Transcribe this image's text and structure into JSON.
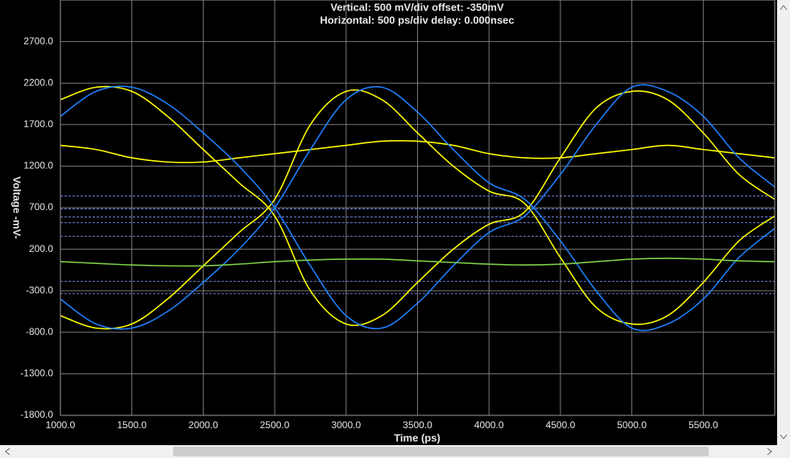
{
  "chart_data": {
    "type": "line",
    "title": "Vertical: 500 mV/div  offset: -350mV",
    "subtitle": "Horizontal: 500 ps/div  delay: 0.000nsec",
    "x_label": "Time  (ps)",
    "y_label": "Voltage  -mV-",
    "xlim": [
      1000,
      6000
    ],
    "ylim": [
      -1800,
      3200
    ],
    "xticks": [
      {
        "value": 1000,
        "label": "1000.0"
      },
      {
        "value": 1500,
        "label": "1500.0"
      },
      {
        "value": 2000,
        "label": "2000.0"
      },
      {
        "value": 2500,
        "label": "2500.0"
      },
      {
        "value": 3000,
        "label": "3000.0"
      },
      {
        "value": 3500,
        "label": "3500.0"
      },
      {
        "value": 4000,
        "label": "4000.0"
      },
      {
        "value": 4500,
        "label": "4500.0"
      },
      {
        "value": 5000,
        "label": "5000.0"
      },
      {
        "value": 5500,
        "label": "5500.0"
      }
    ],
    "yticks": [
      {
        "value": 2700,
        "label": "2700.0"
      },
      {
        "value": 2200,
        "label": "2200.0"
      },
      {
        "value": 1700,
        "label": "1700.0"
      },
      {
        "value": 1200,
        "label": "1200.0"
      },
      {
        "value": 700,
        "label": "700.0"
      },
      {
        "value": 200,
        "label": "200.0"
      },
      {
        "value": -300,
        "label": "-300.0"
      },
      {
        "value": -800,
        "label": "-800.0"
      },
      {
        "value": -1300,
        "label": "-1300.0"
      },
      {
        "value": -1800,
        "label": "-1800.0"
      }
    ],
    "grid": true,
    "reference_lines": [
      840,
      685,
      588,
      520,
      355,
      -188,
      -334
    ],
    "reference_color": "#6f7fd8",
    "x": [
      1000,
      1250,
      1500,
      1750,
      2000,
      2250,
      2500,
      2750,
      3000,
      3250,
      3500,
      3750,
      4000,
      4250,
      4500,
      4750,
      5000,
      5250,
      5500,
      5750,
      6000
    ],
    "series": [
      {
        "color": "#ffff00",
        "values": [
          2000,
          2150,
          2100,
          1800,
          1400,
          1000,
          600,
          -300,
          -700,
          -600,
          -200,
          200,
          500,
          650,
          1300,
          1900,
          2100,
          2000,
          1600,
          1100,
          800
        ]
      },
      {
        "color": "#ffff00",
        "values": [
          -600,
          -750,
          -700,
          -400,
          0,
          400,
          800,
          1700,
          2100,
          2000,
          1600,
          1200,
          900,
          750,
          100,
          -500,
          -700,
          -600,
          -200,
          300,
          600
        ]
      },
      {
        "color": "#ffff00",
        "values": [
          1450,
          1400,
          1300,
          1250,
          1250,
          1300,
          1350,
          1400,
          1450,
          1500,
          1500,
          1450,
          1350,
          1300,
          1300,
          1350,
          1400,
          1450,
          1400,
          1350,
          1300
        ]
      },
      {
        "color": "#1e80ff",
        "values": [
          1800,
          2100,
          2150,
          1950,
          1600,
          1200,
          700,
          0,
          -600,
          -750,
          -450,
          0,
          400,
          600,
          1100,
          1700,
          2150,
          2100,
          1800,
          1300,
          950
        ]
      },
      {
        "color": "#1e80ff",
        "values": [
          -400,
          -700,
          -750,
          -550,
          -200,
          200,
          700,
          1400,
          2000,
          2150,
          1850,
          1400,
          1000,
          800,
          300,
          -300,
          -750,
          -700,
          -400,
          100,
          450
        ]
      },
      {
        "color": "#7fd04a",
        "values": [
          50,
          30,
          10,
          0,
          0,
          20,
          50,
          70,
          80,
          80,
          60,
          40,
          20,
          10,
          20,
          50,
          80,
          90,
          80,
          60,
          50
        ]
      }
    ]
  }
}
